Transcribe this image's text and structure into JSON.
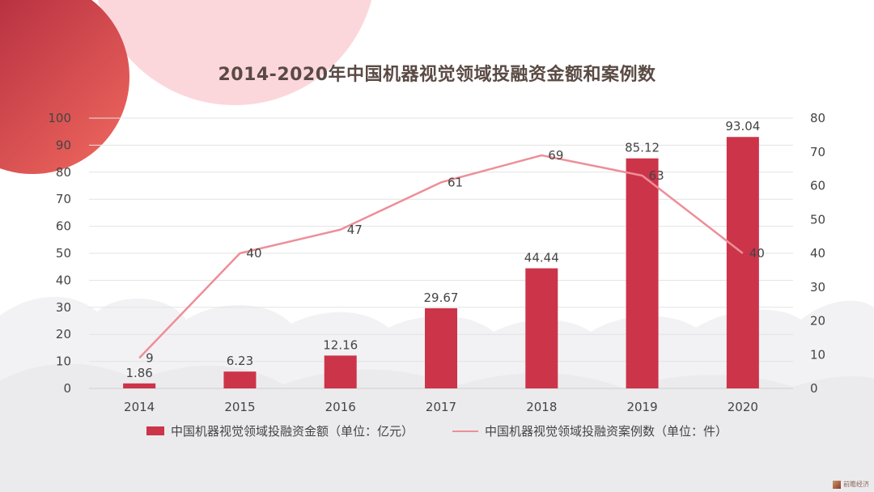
{
  "chart_data": {
    "type": "bar+line",
    "title": "2014-2020年中国机器视觉领域投融资金额和案例数",
    "categories": [
      "2014",
      "2015",
      "2016",
      "2017",
      "2018",
      "2019",
      "2020"
    ],
    "series": [
      {
        "name": "中国机器视觉领域投融资金额（单位：亿元）",
        "type": "bar",
        "axis": "left",
        "values": [
          1.86,
          6.23,
          12.16,
          29.67,
          44.44,
          85.12,
          93.04
        ],
        "labels": [
          "1.86",
          "6.23",
          "12.16",
          "29.67",
          "44.44",
          "85.12",
          "93.04"
        ]
      },
      {
        "name": "中国机器视觉领域投融资案例数（单位：件）",
        "type": "line",
        "axis": "right",
        "values": [
          9,
          40,
          47,
          61,
          69,
          63,
          40
        ],
        "labels": [
          "9",
          "40",
          "47",
          "61",
          "69",
          "63",
          "40"
        ]
      }
    ],
    "y_left": {
      "min": 0,
      "max": 100,
      "ticks": [
        "0",
        "10",
        "20",
        "30",
        "40",
        "50",
        "60",
        "70",
        "80",
        "90",
        "100"
      ]
    },
    "y_right": {
      "min": 0,
      "max": 80,
      "ticks": [
        "0",
        "10",
        "20",
        "30",
        "40",
        "50",
        "60",
        "70",
        "80"
      ]
    },
    "grid": true,
    "legend_position": "bottom"
  },
  "colors": {
    "bar": "#cc3449",
    "line": "#ee8e98",
    "text": "#444444",
    "title": "#5a4a44",
    "grid": "#e3e3e3",
    "circle_red": "#e9585c",
    "circle_pink": "#f9d3da",
    "cloud": "#f0f0f2"
  },
  "brand": {
    "text": "前瞻经济"
  }
}
